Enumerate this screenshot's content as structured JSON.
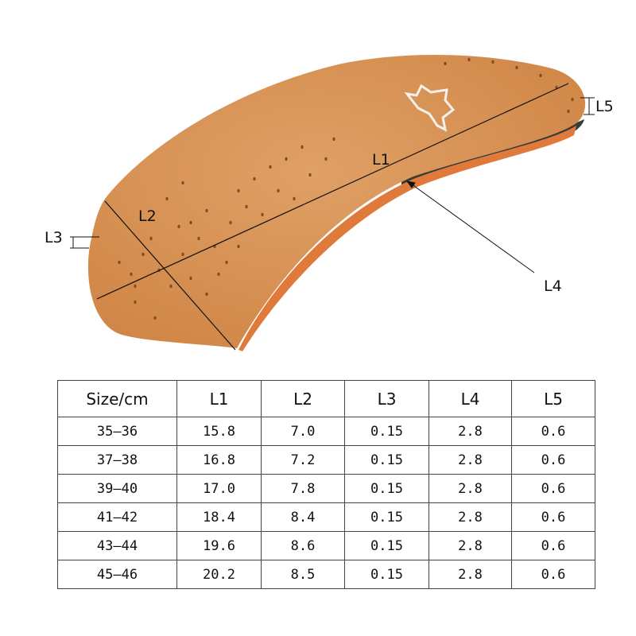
{
  "diagram": {
    "labels": {
      "L1": "L1",
      "L2": "L2",
      "L3": "L3",
      "L4": "L4",
      "L5": "L5"
    },
    "colors": {
      "leather": "#d9904f",
      "edge": "#e07a3a",
      "sole": "#3a3a3a",
      "line": "#111111"
    },
    "logo": "leather-hide-icon"
  },
  "table": {
    "headers": [
      "Size/cm",
      "L1",
      "L2",
      "L3",
      "L4",
      "L5"
    ],
    "rows": [
      [
        "35–36",
        "15.8",
        "7.0",
        "0.15",
        "2.8",
        "0.6"
      ],
      [
        "37–38",
        "16.8",
        "7.2",
        "0.15",
        "2.8",
        "0.6"
      ],
      [
        "39–40",
        "17.0",
        "7.8",
        "0.15",
        "2.8",
        "0.6"
      ],
      [
        "41–42",
        "18.4",
        "8.4",
        "0.15",
        "2.8",
        "0.6"
      ],
      [
        "43–44",
        "19.6",
        "8.6",
        "0.15",
        "2.8",
        "0.6"
      ],
      [
        "45–46",
        "20.2",
        "8.5",
        "0.15",
        "2.8",
        "0.6"
      ]
    ]
  }
}
